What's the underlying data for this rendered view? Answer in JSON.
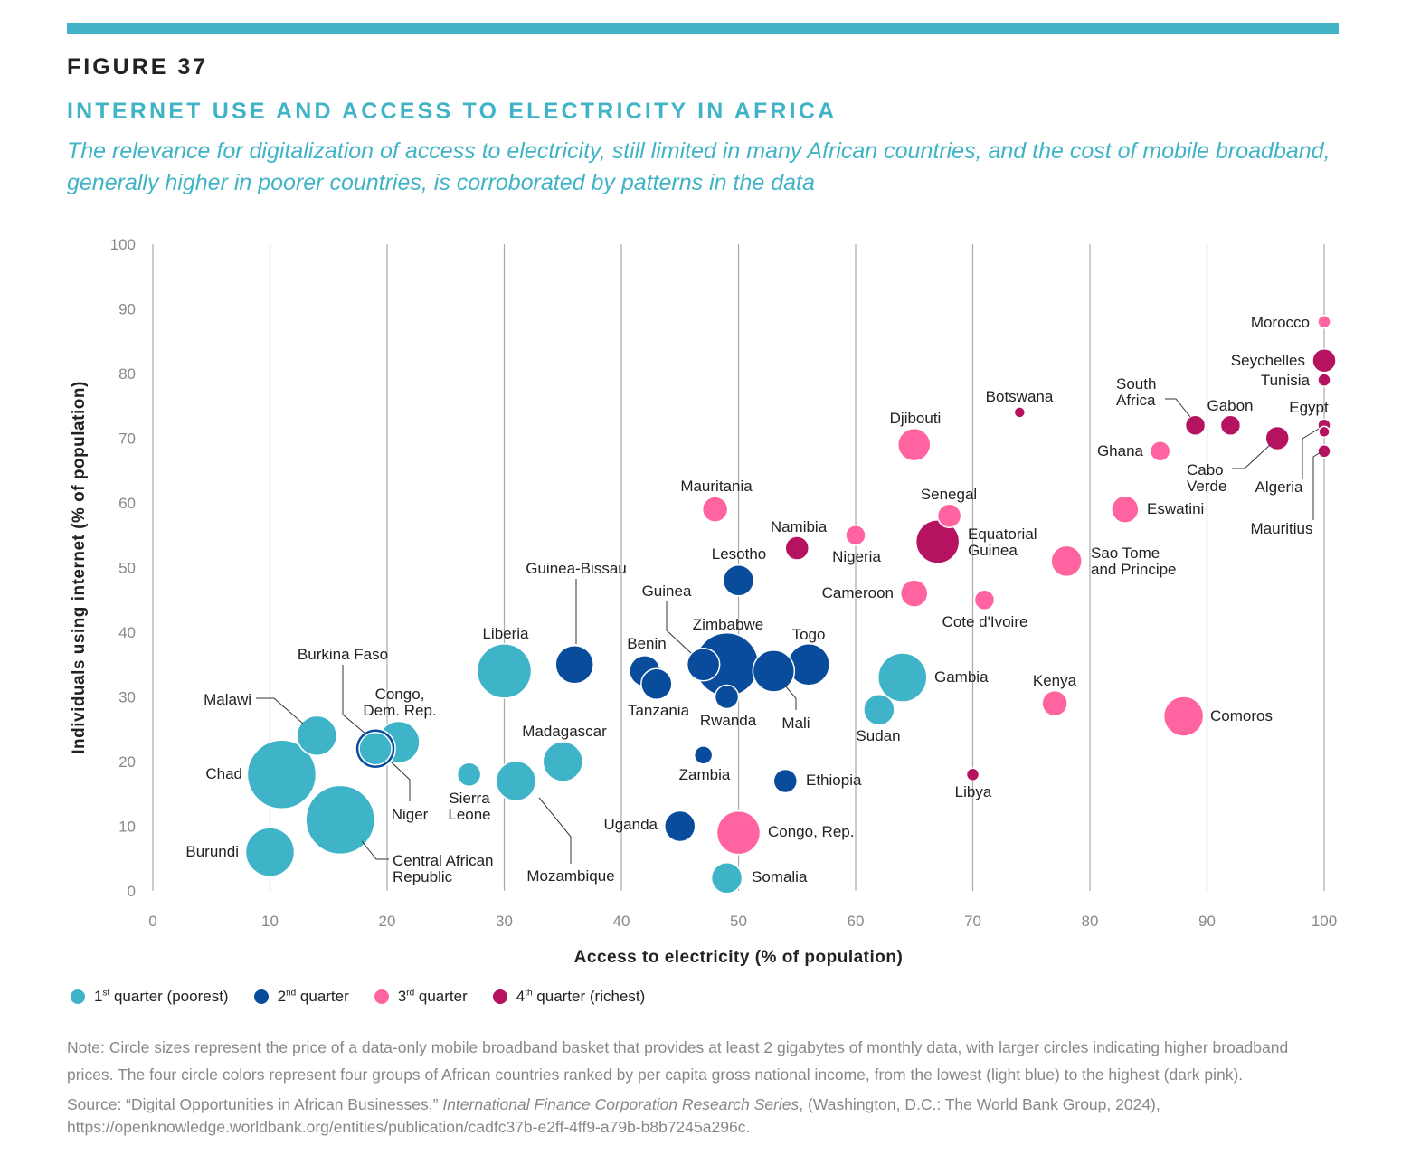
{
  "figure_label": "FIGURE 37",
  "title": "INTERNET USE AND ACCESS TO ELECTRICITY IN AFRICA",
  "subtitle": "The relevance for digitalization of access to electricity, still limited in many African countries, and the cost of mobile broadband, generally higher in poorer countries, is corroborated by patterns in the data",
  "colors": {
    "accent": "#40b4c6",
    "q1": "#3fb4c8",
    "q2": "#0a4c9c",
    "q3": "#ff64a0",
    "q4": "#b5135f"
  },
  "legend": [
    {
      "group": "q1",
      "num": "1",
      "sup": "st",
      "text": " quarter (poorest)"
    },
    {
      "group": "q2",
      "num": "2",
      "sup": "nd",
      "text": " quarter"
    },
    {
      "group": "q3",
      "num": "3",
      "sup": "rd",
      "text": " quarter"
    },
    {
      "group": "q4",
      "num": "4",
      "sup": "th",
      "text": " quarter (richest)"
    }
  ],
  "note": "Note: Circle sizes represent the price of a data-only mobile broadband basket that provides at least 2 gigabytes of monthly data, with larger circles indicating higher broadband prices. The four circle colors represent four groups of African countries ranked by per capita gross national income, from the lowest (light blue) to the highest (dark pink).",
  "source_prefix": "Source: “Digital Opportunities in African Businesses,” ",
  "source_italic": "International Finance Corporation Research Series",
  "source_suffix": ", (Washington, D.C.: The World Bank Group, 2024), https://openknowledge.worldbank.org/entities/publication/cadfc37b-e2ff-4ff9-a79b-b8b7245a296c.",
  "chart_data": {
    "type": "scatter",
    "variant": "bubble",
    "xlabel": "Access to electricity (% of population)",
    "ylabel": "Individuals using internet (% of population)",
    "xlim": [
      0,
      100
    ],
    "ylim": [
      0,
      100
    ],
    "xticks": [
      0,
      10,
      20,
      30,
      40,
      50,
      60,
      70,
      80,
      90,
      100
    ],
    "yticks": [
      0,
      10,
      20,
      30,
      40,
      50,
      60,
      70,
      80,
      90,
      100
    ],
    "grid": "vertical",
    "legend_position": "bottom-left",
    "size_meaning": "relative price of mobile broadband basket (unitless)",
    "points": [
      {
        "name": "Morocco",
        "x": 100,
        "y": 88,
        "size": 7,
        "group": "q3"
      },
      {
        "name": "Seychelles",
        "x": 100,
        "y": 82,
        "size": 13,
        "group": "q4"
      },
      {
        "name": "Tunisia",
        "x": 100,
        "y": 79,
        "size": 7,
        "group": "q4"
      },
      {
        "name": "Botswana",
        "x": 74,
        "y": 74,
        "size": 6,
        "group": "q4"
      },
      {
        "name": "South Africa",
        "x": 89,
        "y": 72,
        "size": 11,
        "group": "q4"
      },
      {
        "name": "Gabon",
        "x": 92,
        "y": 72,
        "size": 11,
        "group": "q4"
      },
      {
        "name": "Egypt",
        "x": 100,
        "y": 72,
        "size": 7,
        "group": "q4"
      },
      {
        "name": "Algeria",
        "x": 100,
        "y": 71,
        "size": 6,
        "group": "q4"
      },
      {
        "name": "Mauritius",
        "x": 100,
        "y": 68,
        "size": 7,
        "group": "q4"
      },
      {
        "name": "Cabo Verde",
        "x": 96,
        "y": 70,
        "size": 13,
        "group": "q4"
      },
      {
        "name": "Ghana",
        "x": 86,
        "y": 68,
        "size": 11,
        "group": "q3"
      },
      {
        "name": "Djibouti",
        "x": 65,
        "y": 69,
        "size": 18,
        "group": "q3"
      },
      {
        "name": "Mauritania",
        "x": 48,
        "y": 59,
        "size": 14,
        "group": "q3"
      },
      {
        "name": "Senegal",
        "x": 68,
        "y": 58,
        "size": 13,
        "group": "q3"
      },
      {
        "name": "Eswatini",
        "x": 83,
        "y": 59,
        "size": 15,
        "group": "q3"
      },
      {
        "name": "Namibia",
        "x": 55,
        "y": 53,
        "size": 13,
        "group": "q4"
      },
      {
        "name": "Nigeria",
        "x": 60,
        "y": 55,
        "size": 11,
        "group": "q3"
      },
      {
        "name": "Equatorial Guinea",
        "x": 67,
        "y": 54,
        "size": 24,
        "group": "q4"
      },
      {
        "name": "Sao Tome and Principe",
        "x": 78,
        "y": 51,
        "size": 17,
        "group": "q3"
      },
      {
        "name": "Lesotho",
        "x": 50,
        "y": 48,
        "size": 17,
        "group": "q2"
      },
      {
        "name": "Cameroon",
        "x": 65,
        "y": 46,
        "size": 15,
        "group": "q3"
      },
      {
        "name": "Cote d'Ivoire",
        "x": 71,
        "y": 45,
        "size": 11,
        "group": "q3"
      },
      {
        "name": "Guinea-Bissau",
        "x": 36,
        "y": 35,
        "size": 21,
        "group": "q2"
      },
      {
        "name": "Liberia",
        "x": 30,
        "y": 34,
        "size": 30,
        "group": "q1"
      },
      {
        "name": "Benin",
        "x": 42,
        "y": 34,
        "size": 17,
        "group": "q2"
      },
      {
        "name": "Guinea",
        "x": 47,
        "y": 35,
        "size": 18,
        "group": "q2"
      },
      {
        "name": "Zimbabwe",
        "x": 49,
        "y": 35,
        "size": 35,
        "group": "q2"
      },
      {
        "name": "Togo",
        "x": 56,
        "y": 35,
        "size": 23,
        "group": "q2"
      },
      {
        "name": "Mali",
        "x": 53,
        "y": 34,
        "size": 23,
        "group": "q2"
      },
      {
        "name": "Tanzania",
        "x": 43,
        "y": 32,
        "size": 17,
        "group": "q2"
      },
      {
        "name": "Rwanda",
        "x": 49,
        "y": 30,
        "size": 13,
        "group": "q2"
      },
      {
        "name": "Gambia",
        "x": 64,
        "y": 33,
        "size": 27,
        "group": "q1"
      },
      {
        "name": "Sudan",
        "x": 62,
        "y": 28,
        "size": 17,
        "group": "q1"
      },
      {
        "name": "Kenya",
        "x": 77,
        "y": 29,
        "size": 14,
        "group": "q3"
      },
      {
        "name": "Comoros",
        "x": 88,
        "y": 27,
        "size": 22,
        "group": "q3"
      },
      {
        "name": "Malawi",
        "x": 14,
        "y": 24,
        "size": 22,
        "group": "q1"
      },
      {
        "name": "Burkina Faso",
        "x": 19,
        "y": 22,
        "size": 22,
        "group": "q2"
      },
      {
        "name": "Congo, Dem. Rep.",
        "x": 21,
        "y": 23,
        "size": 23,
        "group": "q1"
      },
      {
        "name": "Niger",
        "x": 19,
        "y": 22,
        "size": 18,
        "group": "q1"
      },
      {
        "name": "Madagascar",
        "x": 35,
        "y": 20,
        "size": 22,
        "group": "q1"
      },
      {
        "name": "Chad",
        "x": 11,
        "y": 18,
        "size": 38,
        "group": "q1"
      },
      {
        "name": "Sierra Leone",
        "x": 27,
        "y": 18,
        "size": 13,
        "group": "q1"
      },
      {
        "name": "Mozambique",
        "x": 31,
        "y": 17,
        "size": 22,
        "group": "q1"
      },
      {
        "name": "Zambia",
        "x": 47,
        "y": 21,
        "size": 10,
        "group": "q2"
      },
      {
        "name": "Ethiopia",
        "x": 54,
        "y": 17,
        "size": 13,
        "group": "q2"
      },
      {
        "name": "Libya",
        "x": 70,
        "y": 18,
        "size": 7,
        "group": "q4"
      },
      {
        "name": "Central African Republic",
        "x": 16,
        "y": 11,
        "size": 38,
        "group": "q1"
      },
      {
        "name": "Uganda",
        "x": 45,
        "y": 10,
        "size": 17,
        "group": "q2"
      },
      {
        "name": "Congo, Rep.",
        "x": 50,
        "y": 9,
        "size": 24,
        "group": "q3"
      },
      {
        "name": "Burundi",
        "x": 10,
        "y": 6,
        "size": 27,
        "group": "q1"
      },
      {
        "name": "Somalia",
        "x": 49,
        "y": 2,
        "size": 17,
        "group": "q1"
      }
    ]
  }
}
